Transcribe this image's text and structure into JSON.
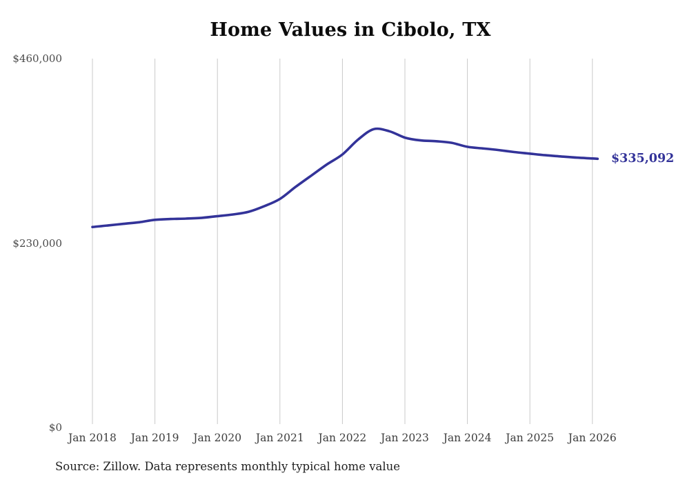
{
  "title": "Home Values in Cibolo, TX",
  "end_label": "$335,092",
  "source_note": "Source: Zillow. Data represents monthly typical home value",
  "colors": {
    "line": "#333399",
    "end_label": "#333399",
    "grid": "#c9c9c9",
    "title": "#0c0c0c",
    "axis_text": "#4a4a4a"
  },
  "chart_data": {
    "type": "line",
    "title": "Home Values in Cibolo, TX",
    "xlabel": "",
    "ylabel": "",
    "unit": "USD",
    "grid": "vertical-only",
    "legend": "none",
    "ylim": [
      0,
      460000
    ],
    "y_ticks": [
      {
        "label": "$0",
        "value": 0
      },
      {
        "label": "$230,000",
        "value": 230000
      },
      {
        "label": "$460,000",
        "value": 460000
      }
    ],
    "x_ticks": [
      {
        "label": "Jan 2018",
        "year": 2018
      },
      {
        "label": "Jan 2019",
        "year": 2019
      },
      {
        "label": "Jan 2020",
        "year": 2020
      },
      {
        "label": "Jan 2021",
        "year": 2021
      },
      {
        "label": "Jan 2022",
        "year": 2022
      },
      {
        "label": "Jan 2023",
        "year": 2023
      },
      {
        "label": "Jan 2024",
        "year": 2024
      },
      {
        "label": "Jan 2025",
        "year": 2025
      },
      {
        "label": "Jan 2026",
        "year": 2026
      }
    ],
    "series": [
      {
        "name": "Monthly typical home value",
        "points": [
          [
            "2018-01",
            250000
          ],
          [
            "2018-04",
            252000
          ],
          [
            "2018-07",
            254000
          ],
          [
            "2018-10",
            256000
          ],
          [
            "2019-01",
            259000
          ],
          [
            "2019-04",
            260000
          ],
          [
            "2019-07",
            260500
          ],
          [
            "2019-10",
            261500
          ],
          [
            "2020-01",
            263500
          ],
          [
            "2020-04",
            265700
          ],
          [
            "2020-07",
            269000
          ],
          [
            "2020-10",
            276000
          ],
          [
            "2021-01",
            285000
          ],
          [
            "2021-04",
            300000
          ],
          [
            "2021-07",
            314000
          ],
          [
            "2021-10",
            328000
          ],
          [
            "2022-01",
            340500
          ],
          [
            "2022-04",
            359000
          ],
          [
            "2022-07",
            372000
          ],
          [
            "2022-10",
            369500
          ],
          [
            "2023-01",
            361500
          ],
          [
            "2023-04",
            358000
          ],
          [
            "2023-07",
            357000
          ],
          [
            "2023-10",
            355000
          ],
          [
            "2024-01",
            350000
          ],
          [
            "2024-04",
            348000
          ],
          [
            "2024-07",
            346000
          ],
          [
            "2024-10",
            343500
          ],
          [
            "2025-01",
            341500
          ],
          [
            "2025-04",
            339500
          ],
          [
            "2025-07",
            338000
          ],
          [
            "2025-10",
            336500
          ],
          [
            "2026-01",
            335500
          ],
          [
            "2026-02",
            335092
          ]
        ]
      }
    ],
    "end_value": 335092,
    "end_value_label": "$335,092"
  }
}
